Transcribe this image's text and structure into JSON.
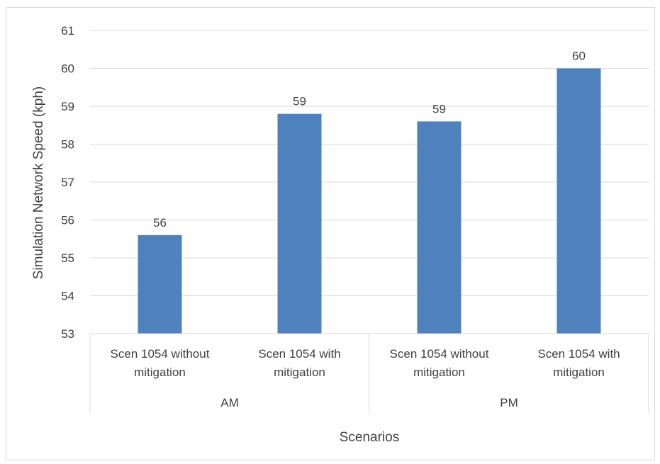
{
  "chart_data": {
    "type": "bar",
    "title": "",
    "xlabel": "Scenarios",
    "ylabel": "Simulation Network Speed (kph)",
    "ylim": [
      53,
      61
    ],
    "yticks": [
      53,
      54,
      55,
      56,
      57,
      58,
      59,
      60,
      61
    ],
    "grid": true,
    "legend": "none",
    "bar_color": "#4f81bd",
    "groups": [
      {
        "name": "AM",
        "categories": [
          "Scen 1054 without mitigation",
          "Scen 1054 with mitigation"
        ]
      },
      {
        "name": "PM",
        "categories": [
          "Scen 1054 without mitigation",
          "Scen 1054 with mitigation"
        ]
      }
    ],
    "categories": [
      [
        "Scen 1054 without",
        "mitigation"
      ],
      [
        "Scen 1054 with",
        "mitigation"
      ],
      [
        "Scen 1054 without",
        "mitigation"
      ],
      [
        "Scen 1054 with",
        "mitigation"
      ]
    ],
    "values": [
      55.6,
      58.8,
      58.6,
      60.0
    ],
    "data_labels": [
      "56",
      "59",
      "59",
      "60"
    ]
  }
}
